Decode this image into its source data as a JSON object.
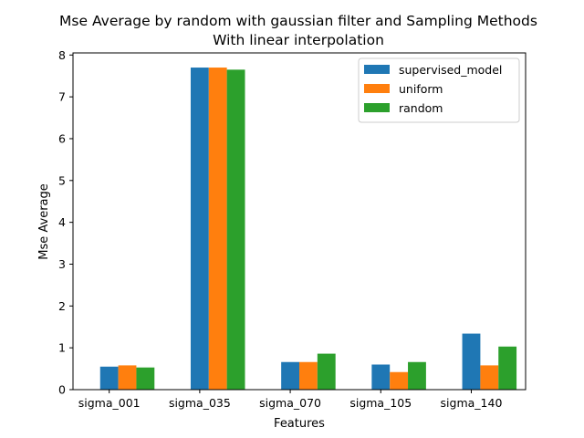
{
  "chart_data": {
    "type": "bar",
    "title": "Mse Average by random with gaussian filter and Sampling Methods",
    "subtitle": "With linear interpolation",
    "xlabel": "Features",
    "ylabel": "Mse Average",
    "categories": [
      "sigma_001",
      "sigma_035",
      "sigma_070",
      "sigma_105",
      "sigma_140"
    ],
    "series": [
      {
        "name": "supervised_model",
        "color": "#1f77b4",
        "values": [
          0.55,
          7.7,
          0.66,
          0.6,
          1.34
        ]
      },
      {
        "name": "uniform",
        "color": "#ff7f0e",
        "values": [
          0.58,
          7.7,
          0.66,
          0.42,
          0.58
        ]
      },
      {
        "name": "random",
        "color": "#2ca02c",
        "values": [
          0.53,
          7.65,
          0.86,
          0.66,
          1.03
        ]
      }
    ],
    "ylim": [
      0,
      8.05
    ],
    "yticks": [
      0,
      1,
      2,
      3,
      4,
      5,
      6,
      7,
      8
    ],
    "grid": false,
    "legend_position": "top-right"
  }
}
